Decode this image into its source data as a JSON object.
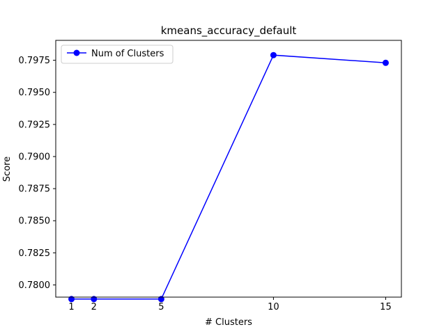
{
  "chart_data": {
    "type": "line",
    "title": "kmeans_accuracy_default",
    "xlabel": "# Clusters",
    "ylabel": "Score",
    "x": [
      1,
      2,
      5,
      10,
      15
    ],
    "xticks": [
      1,
      2,
      5,
      10,
      15
    ],
    "xlim": [
      0.3,
      15.7
    ],
    "ylim": [
      0.77905,
      0.79905
    ],
    "yticks": [
      0.78,
      0.7825,
      0.785,
      0.7875,
      0.79,
      0.7925,
      0.795,
      0.7975
    ],
    "ytick_labels": [
      "0.7800",
      "0.7825",
      "0.7850",
      "0.7875",
      "0.7900",
      "0.7925",
      "0.7950",
      "0.7975"
    ],
    "series": [
      {
        "name": "Num of Clusters",
        "color": "#0000ff",
        "marker": "circle",
        "values": [
          0.7789,
          0.7789,
          0.7789,
          0.7979,
          0.7973
        ]
      }
    ],
    "legend_position": "top-left",
    "grid": false
  }
}
